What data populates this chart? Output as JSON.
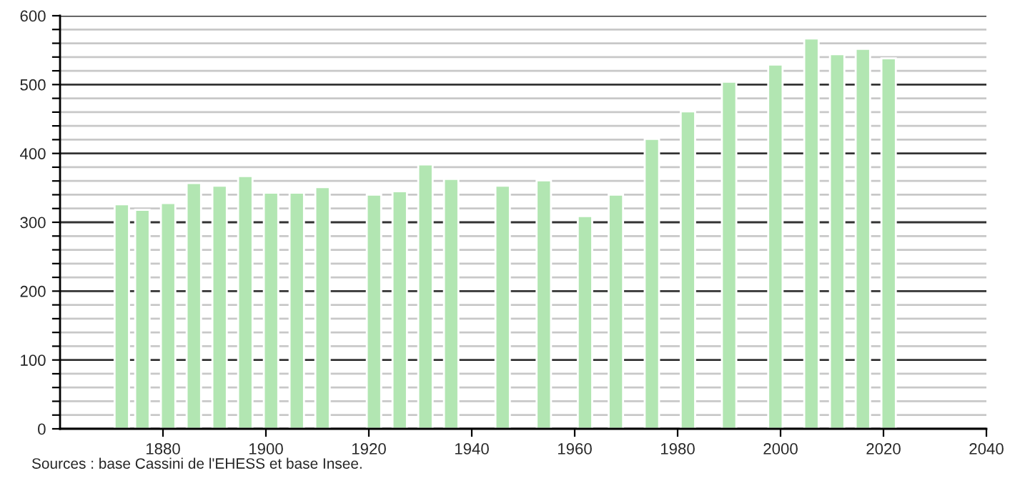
{
  "chart_data": {
    "type": "bar",
    "x": [
      1872,
      1876,
      1881,
      1886,
      1891,
      1896,
      1901,
      1906,
      1911,
      1921,
      1926,
      1931,
      1936,
      1946,
      1954,
      1962,
      1968,
      1975,
      1982,
      1990,
      1999,
      2006,
      2011,
      2016,
      2021
    ],
    "values": [
      326,
      318,
      328,
      357,
      353,
      367,
      343,
      343,
      351,
      340,
      345,
      384,
      363,
      353,
      361,
      309,
      340,
      421,
      461,
      504,
      529,
      567,
      544,
      552,
      538
    ],
    "color": "#b2e6b2",
    "xlim": [
      1860,
      2040
    ],
    "xticks": [
      1880,
      1900,
      1920,
      1940,
      1960,
      1980,
      2000,
      2020,
      2040
    ],
    "ylim": [
      0,
      600
    ],
    "yticks": [
      0,
      {
        "value": 20,
        "label": null
      },
      {
        "value": 40,
        "label": null
      },
      {
        "value": 60,
        "label": null
      },
      {
        "value": 80,
        "label": null
      },
      100,
      {
        "value": 120,
        "label": null
      },
      {
        "value": 140,
        "label": null
      },
      {
        "value": 160,
        "label": null
      },
      {
        "value": 180,
        "label": null
      },
      200,
      {
        "value": 220,
        "label": null
      },
      {
        "value": 240,
        "label": null
      },
      {
        "value": 260,
        "label": null
      },
      {
        "value": 280,
        "label": null
      },
      300,
      {
        "value": 320,
        "label": null
      },
      {
        "value": 340,
        "label": null
      },
      {
        "value": 360,
        "label": null
      },
      {
        "value": 380,
        "label": null
      },
      400,
      {
        "value": 420,
        "label": null
      },
      {
        "value": 440,
        "label": null
      },
      {
        "value": 460,
        "label": null
      },
      {
        "value": 480,
        "label": null
      },
      500,
      {
        "value": 520,
        "label": null
      },
      {
        "value": 540,
        "label": null
      },
      {
        "value": 560,
        "label": null
      },
      {
        "value": 580,
        "label": null
      },
      600
    ],
    "grid": "y",
    "annotations": [
      "Sources : base Cassini de l'EHESS et base Insee."
    ]
  }
}
